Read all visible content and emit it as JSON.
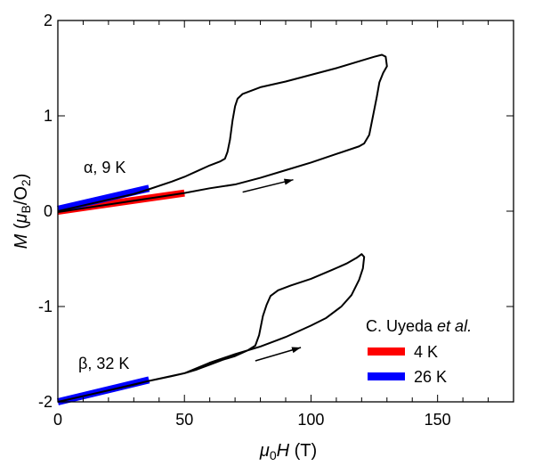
{
  "chart_data": {
    "type": "line",
    "title": "",
    "xlabel": {
      "mu": "μ",
      "sub": "0",
      "var": "H",
      "unit": " (T)"
    },
    "ylabel": {
      "var": "M",
      "open": " (",
      "mu": "μ",
      "sub": "B",
      "mid": "/O",
      "sub2": "2",
      "close": ")"
    },
    "xlim": [
      0,
      180
    ],
    "ylim": [
      -2,
      2
    ],
    "xticks": [
      0,
      50,
      100,
      150
    ],
    "xtick_labels": [
      "0",
      "50",
      "100",
      "150"
    ],
    "yticks": [
      2,
      1,
      0,
      -1,
      -2
    ],
    "ytick_labels": [
      "2",
      "1",
      "0",
      "-1",
      "-2"
    ],
    "x_minor_step": 10,
    "grid": false,
    "series": [
      {
        "name": "α, 9 K",
        "color": "#000000",
        "kind": "measurement",
        "points": [
          [
            0,
            0
          ],
          [
            10,
            0.06
          ],
          [
            20,
            0.12
          ],
          [
            30,
            0.18
          ],
          [
            36,
            0.23
          ],
          [
            45,
            0.31
          ],
          [
            50,
            0.36
          ],
          [
            55,
            0.42
          ],
          [
            60,
            0.48
          ],
          [
            64,
            0.52
          ],
          [
            66,
            0.55
          ],
          [
            67,
            0.62
          ],
          [
            68,
            0.75
          ],
          [
            69,
            0.95
          ],
          [
            70,
            1.1
          ],
          [
            71,
            1.18
          ],
          [
            73,
            1.23
          ],
          [
            80,
            1.3
          ],
          [
            90,
            1.36
          ],
          [
            100,
            1.43
          ],
          [
            110,
            1.5
          ],
          [
            120,
            1.58
          ],
          [
            125,
            1.62
          ],
          [
            128,
            1.64
          ],
          [
            129.5,
            1.62
          ],
          [
            130,
            1.52
          ],
          [
            128.5,
            1.45
          ],
          [
            127,
            1.35
          ],
          [
            126,
            1.2
          ],
          [
            124.5,
            1.0
          ],
          [
            123,
            0.8
          ],
          [
            121,
            0.71
          ],
          [
            119,
            0.68
          ],
          [
            110,
            0.6
          ],
          [
            100,
            0.51
          ],
          [
            90,
            0.43
          ],
          [
            80,
            0.35
          ],
          [
            70,
            0.28
          ],
          [
            60,
            0.24
          ],
          [
            50,
            0.19
          ],
          [
            40,
            0.15
          ],
          [
            30,
            0.11
          ],
          [
            20,
            0.07
          ],
          [
            10,
            0.03
          ],
          [
            0,
            -0.01
          ]
        ]
      },
      {
        "name": "β, 32 K",
        "color": "#000000",
        "kind": "measurement",
        "points": [
          [
            0,
            -2
          ],
          [
            10,
            -1.94
          ],
          [
            20,
            -1.88
          ],
          [
            30,
            -1.82
          ],
          [
            36,
            -1.78
          ],
          [
            45,
            -1.73
          ],
          [
            50,
            -1.7
          ],
          [
            55,
            -1.66
          ],
          [
            60,
            -1.61
          ],
          [
            65,
            -1.56
          ],
          [
            70,
            -1.52
          ],
          [
            75,
            -1.46
          ],
          [
            78,
            -1.41
          ],
          [
            79.5,
            -1.3
          ],
          [
            81,
            -1.1
          ],
          [
            82.5,
            -0.98
          ],
          [
            84,
            -0.89
          ],
          [
            87,
            -0.83
          ],
          [
            92,
            -0.78
          ],
          [
            100,
            -0.71
          ],
          [
            108,
            -0.62
          ],
          [
            114,
            -0.55
          ],
          [
            118,
            -0.49
          ],
          [
            120,
            -0.45
          ],
          [
            121,
            -0.48
          ],
          [
            120.5,
            -0.6
          ],
          [
            119,
            -0.72
          ],
          [
            116,
            -0.88
          ],
          [
            112,
            -1.0
          ],
          [
            106,
            -1.12
          ],
          [
            100,
            -1.2
          ],
          [
            90,
            -1.32
          ],
          [
            80,
            -1.42
          ],
          [
            70,
            -1.5
          ],
          [
            60,
            -1.59
          ],
          [
            50,
            -1.7
          ],
          [
            36,
            -1.78
          ],
          [
            20,
            -1.88
          ],
          [
            10,
            -1.94
          ],
          [
            0,
            -2
          ]
        ]
      },
      {
        "name": "4 K",
        "color": "#ff0000",
        "kind": "reference",
        "group": "alpha",
        "points": [
          [
            0,
            0
          ],
          [
            50,
            0.19
          ]
        ]
      },
      {
        "name": "26 K",
        "color": "#0000ff",
        "kind": "reference",
        "group": "alpha",
        "points": [
          [
            0,
            0.02
          ],
          [
            36,
            0.24
          ]
        ]
      },
      {
        "name": "26 K",
        "color": "#0000ff",
        "kind": "reference",
        "group": "beta",
        "points": [
          [
            0,
            -2
          ],
          [
            36,
            -1.77
          ]
        ]
      }
    ],
    "annotations": [
      {
        "text": "α, 9 K",
        "x": 8,
        "y": 0.42
      },
      {
        "text": "β, 32 K",
        "x": 8,
        "y": -1.58
      }
    ],
    "arrows": [
      {
        "from": [
          73,
          0.2
        ],
        "to": [
          93,
          0.33
        ]
      },
      {
        "from": [
          78,
          -1.57
        ],
        "to": [
          96,
          -1.43
        ]
      }
    ],
    "legend": {
      "placement": "bottom-right",
      "title_prefix": "C. Uyeda ",
      "title_italic": "et al.",
      "entries": [
        {
          "label": "4 K",
          "color": "#ff0000"
        },
        {
          "label": "26 K",
          "color": "#0000ff"
        }
      ]
    }
  }
}
